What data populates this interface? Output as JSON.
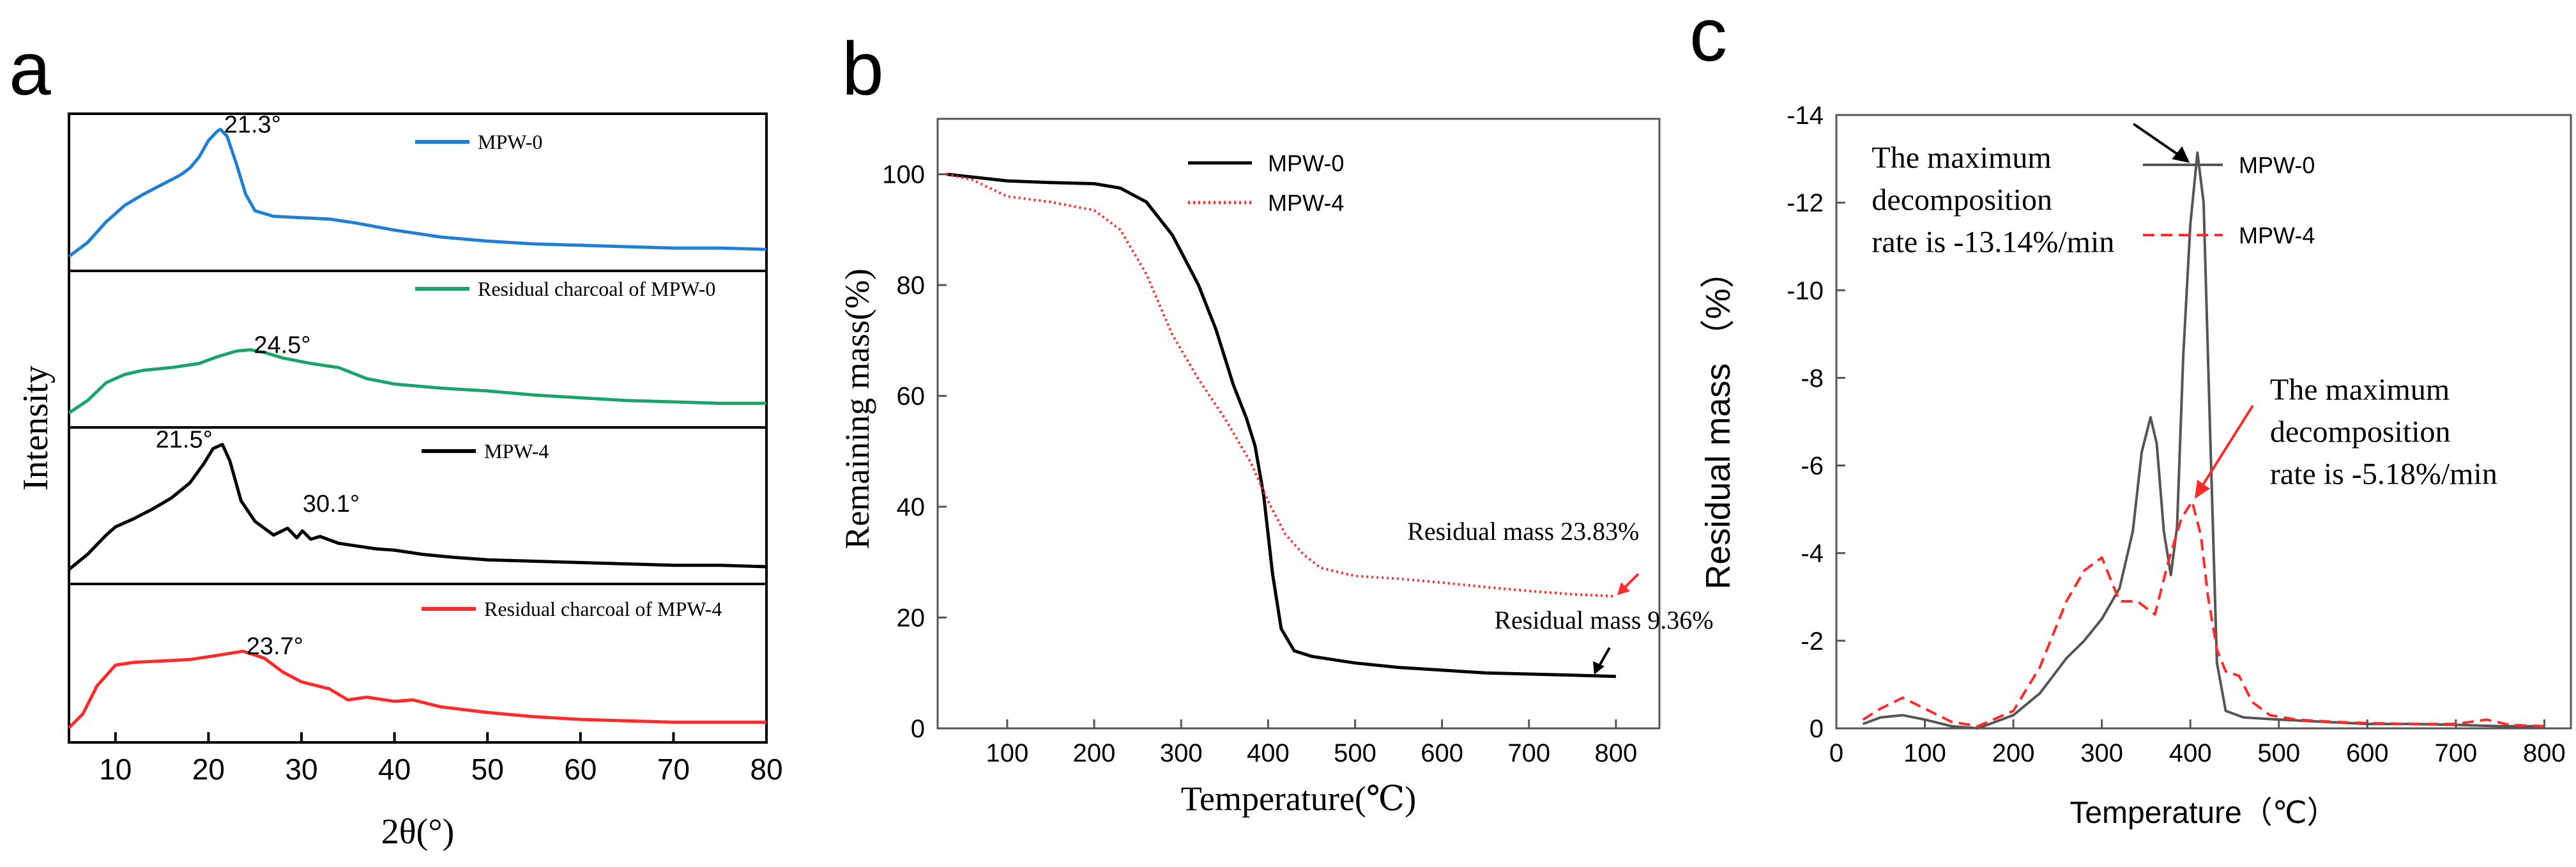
{
  "panels": {
    "a": "a",
    "b": "b",
    "c": "c"
  },
  "colors": {
    "blue": "#1f7fd6",
    "green": "#1aa36b",
    "black": "#000000",
    "red": "#ff2a2a",
    "axis": "#000000"
  },
  "chart_data": [
    {
      "id": "a",
      "type": "line",
      "title": "",
      "xlabel": "2θ(°)",
      "ylabel": "Intensity",
      "xlim": [
        5,
        80
      ],
      "xticks": [
        10,
        20,
        30,
        40,
        50,
        60,
        70,
        80
      ],
      "grid": false,
      "stacked_panels": true,
      "series": [
        {
          "name": "MPW-0",
          "color": "#1f7fd6",
          "x": [
            5,
            7,
            9,
            11,
            13,
            15,
            17,
            18,
            19,
            20,
            21,
            21.3,
            22,
            23,
            24,
            25,
            27,
            30,
            33,
            36,
            40,
            45,
            50,
            55,
            60,
            65,
            70,
            75,
            80
          ],
          "y": [
            0.05,
            0.15,
            0.3,
            0.42,
            0.5,
            0.57,
            0.64,
            0.69,
            0.77,
            0.89,
            0.96,
            0.97,
            0.92,
            0.72,
            0.5,
            0.38,
            0.34,
            0.33,
            0.32,
            0.29,
            0.24,
            0.19,
            0.16,
            0.14,
            0.13,
            0.12,
            0.11,
            0.11,
            0.1
          ],
          "peak_labels": [
            {
              "x": 21.3,
              "text": "21.3°"
            }
          ]
        },
        {
          "name": "Residual charcoal of  MPW-0",
          "color": "#1aa36b",
          "x": [
            5,
            7,
            9,
            11,
            13,
            16,
            19,
            21,
            23,
            24.5,
            26,
            28,
            31,
            34,
            37,
            40,
            45,
            50,
            55,
            60,
            65,
            70,
            75,
            80
          ],
          "y": [
            0.05,
            0.14,
            0.27,
            0.33,
            0.36,
            0.38,
            0.41,
            0.46,
            0.5,
            0.51,
            0.49,
            0.45,
            0.41,
            0.38,
            0.3,
            0.26,
            0.23,
            0.21,
            0.18,
            0.16,
            0.14,
            0.13,
            0.12,
            0.12
          ],
          "peak_labels": [
            {
              "x": 24.5,
              "text": "24.5°"
            }
          ]
        },
        {
          "name": "MPW-4",
          "color": "#000000",
          "x": [
            5,
            7,
            9,
            10,
            12,
            14,
            16,
            18,
            19.5,
            20.5,
            21.5,
            22.3,
            23.5,
            25,
            27,
            28.5,
            29.5,
            30.1,
            31,
            32,
            34,
            36,
            38,
            40,
            43,
            46,
            50,
            55,
            60,
            65,
            70,
            75,
            80
          ],
          "y": [
            0.05,
            0.16,
            0.3,
            0.36,
            0.42,
            0.49,
            0.57,
            0.68,
            0.82,
            0.93,
            0.96,
            0.84,
            0.55,
            0.4,
            0.3,
            0.35,
            0.28,
            0.33,
            0.27,
            0.29,
            0.24,
            0.22,
            0.2,
            0.19,
            0.16,
            0.14,
            0.12,
            0.11,
            0.1,
            0.09,
            0.08,
            0.08,
            0.07
          ],
          "peak_labels": [
            {
              "x": 21.5,
              "text": "21.5°"
            },
            {
              "x": 30.1,
              "text": "30.1°"
            }
          ]
        },
        {
          "name": "Residual charcoal of MPW-4",
          "color": "#ff2a2a",
          "x": [
            5,
            6.5,
            8,
            10,
            12,
            15,
            18,
            21,
            23.7,
            26,
            28,
            30,
            33,
            35,
            37,
            40,
            42,
            45,
            50,
            55,
            60,
            65,
            70,
            75,
            80
          ],
          "y": [
            0.05,
            0.15,
            0.35,
            0.5,
            0.52,
            0.53,
            0.54,
            0.57,
            0.6,
            0.55,
            0.45,
            0.38,
            0.33,
            0.25,
            0.27,
            0.24,
            0.25,
            0.2,
            0.16,
            0.13,
            0.11,
            0.1,
            0.09,
            0.09,
            0.09
          ],
          "peak_labels": [
            {
              "x": 23.7,
              "text": "23.7°"
            }
          ]
        }
      ]
    },
    {
      "id": "b",
      "type": "line",
      "title": "",
      "xlabel": "Temperature(℃)",
      "ylabel": "Remaining mass(%)",
      "xlim": [
        20,
        850
      ],
      "ylim": [
        0,
        110
      ],
      "xticks": [
        100,
        200,
        300,
        400,
        500,
        600,
        700,
        800
      ],
      "yticks": [
        0,
        20,
        40,
        60,
        80,
        100
      ],
      "grid": false,
      "legend": "top-center",
      "series": [
        {
          "name": "MPW-0",
          "color": "#000000",
          "dash": "solid",
          "x": [
            30,
            60,
            100,
            150,
            200,
            230,
            260,
            290,
            320,
            340,
            360,
            375,
            385,
            395,
            405,
            415,
            430,
            450,
            500,
            550,
            600,
            650,
            700,
            750,
            800
          ],
          "y": [
            100,
            99.5,
            98.8,
            98.5,
            98.3,
            97.5,
            95,
            89,
            80,
            72,
            62,
            56,
            51,
            42,
            28,
            18,
            14,
            13,
            11.8,
            11,
            10.5,
            10,
            9.8,
            9.6,
            9.36
          ]
        },
        {
          "name": "MPW-4",
          "color": "#ff2a2a",
          "dash": "dotted",
          "x": [
            30,
            60,
            80,
            100,
            150,
            200,
            230,
            260,
            290,
            320,
            350,
            380,
            400,
            420,
            440,
            460,
            500,
            550,
            600,
            650,
            700,
            750,
            800
          ],
          "y": [
            100,
            99,
            97.5,
            96,
            95,
            93.5,
            90,
            82,
            71,
            63,
            56,
            48,
            41,
            35,
            31.5,
            29,
            27.5,
            27,
            26.3,
            25.5,
            24.8,
            24.2,
            23.83
          ]
        }
      ],
      "annotations": [
        {
          "text": "Residual mass 23.83%",
          "color": "#ff2a2a",
          "x": 560,
          "y": 34
        },
        {
          "text": "Residual mass 9.36%",
          "color": "#000000",
          "x": 660,
          "y": 18
        }
      ]
    },
    {
      "id": "c",
      "type": "line",
      "title": "",
      "xlabel": "Temperature（℃）",
      "ylabel": "Residual mass （%）",
      "xlim": [
        0,
        830
      ],
      "ylim": [
        0,
        -14
      ],
      "xticks": [
        0,
        100,
        200,
        300,
        400,
        500,
        600,
        700,
        800
      ],
      "yticks": [
        0,
        -2,
        -4,
        -6,
        -8,
        -10,
        -12,
        -14
      ],
      "grid": false,
      "legend": "top-right",
      "series": [
        {
          "name": "MPW-0",
          "color": "#555555",
          "dash": "solid",
          "x": [
            30,
            50,
            75,
            100,
            130,
            160,
            200,
            230,
            260,
            280,
            300,
            320,
            335,
            345,
            355,
            362,
            370,
            378,
            385,
            392,
            400,
            408,
            415,
            422,
            430,
            440,
            460,
            500,
            550,
            600,
            650,
            700,
            750,
            800
          ],
          "y": [
            -0.1,
            -0.25,
            -0.3,
            -0.2,
            -0.05,
            0,
            -0.3,
            -0.8,
            -1.6,
            -2.0,
            -2.5,
            -3.2,
            -4.5,
            -6.3,
            -7.1,
            -6.5,
            -4.5,
            -3.5,
            -4.6,
            -8.5,
            -11.5,
            -13.14,
            -12,
            -7,
            -1.5,
            -0.4,
            -0.25,
            -0.2,
            -0.15,
            -0.1,
            -0.1,
            -0.08,
            -0.05,
            -0.05
          ]
        },
        {
          "name": "MPW-4",
          "color": "#ff2a2a",
          "dash": "dashed",
          "x": [
            30,
            50,
            75,
            100,
            130,
            160,
            200,
            230,
            260,
            280,
            300,
            310,
            320,
            340,
            360,
            375,
            390,
            402,
            412,
            420,
            430,
            440,
            455,
            470,
            490,
            520,
            560,
            600,
            650,
            700,
            735,
            760,
            800
          ],
          "y": [
            -0.2,
            -0.45,
            -0.7,
            -0.45,
            -0.15,
            -0.05,
            -0.4,
            -1.4,
            -2.9,
            -3.6,
            -3.9,
            -3.4,
            -2.9,
            -2.9,
            -2.6,
            -3.8,
            -4.8,
            -5.18,
            -4.4,
            -3,
            -1.8,
            -1.3,
            -1.2,
            -0.6,
            -0.3,
            -0.2,
            -0.15,
            -0.12,
            -0.1,
            -0.1,
            -0.2,
            -0.08,
            -0.05
          ]
        }
      ],
      "annotations": [
        {
          "text": [
            "The maximum",
            "decomposition",
            "rate is -13.14%/min"
          ],
          "color": "#000000",
          "x": 40,
          "y": -12.8
        },
        {
          "text": [
            "The maximum",
            "decomposition",
            "rate is -5.18%/min"
          ],
          "color": "#ff2a2a",
          "x": 490,
          "y": -7.5
        }
      ]
    }
  ]
}
